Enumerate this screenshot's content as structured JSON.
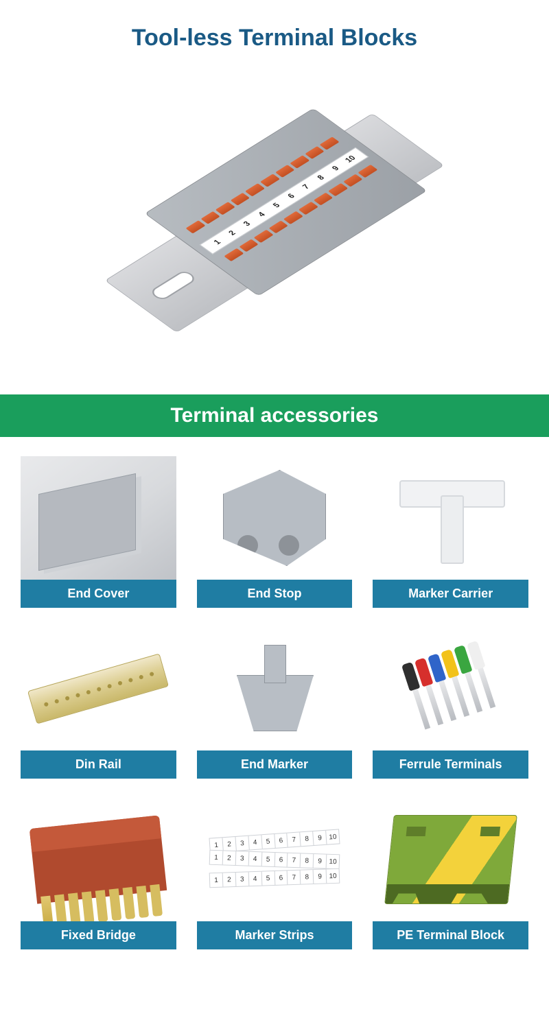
{
  "title": "Tool-less Terminal Blocks",
  "title_color": "#1a5a85",
  "title_fontsize": 34,
  "hero_labels": [
    "1",
    "2",
    "3",
    "4",
    "5",
    "6",
    "7",
    "8",
    "9",
    "10"
  ],
  "section_header": "Terminal accessories",
  "section_header_bg": "#1a9e5c",
  "section_header_color": "#ffffff",
  "caption_bg": "#1f7da3",
  "caption_color": "#ffffff",
  "grid": {
    "cols": 3,
    "row_gap": 28,
    "col_gap": 30,
    "thumb_height": 180
  },
  "ferrule_colors": [
    "#2f2f2f",
    "#d62f2c",
    "#2f64c9",
    "#f2c21a",
    "#3aa640",
    "#efefef"
  ],
  "strip_numbers": [
    "1",
    "2",
    "3",
    "4",
    "5",
    "6",
    "7",
    "8",
    "9",
    "10"
  ],
  "items": [
    {
      "label": "End Cover",
      "name": "end-cover"
    },
    {
      "label": "End Stop",
      "name": "end-stop"
    },
    {
      "label": "Marker Carrier",
      "name": "marker-carrier"
    },
    {
      "label": "Din Rail",
      "name": "din-rail"
    },
    {
      "label": "End Marker",
      "name": "end-marker"
    },
    {
      "label": "Ferrule Terminals",
      "name": "ferrule-terminals"
    },
    {
      "label": "Fixed Bridge",
      "name": "fixed-bridge"
    },
    {
      "label": "Marker Strips",
      "name": "marker-strips"
    },
    {
      "label": "PE Terminal Block",
      "name": "pe-terminal-block"
    }
  ]
}
